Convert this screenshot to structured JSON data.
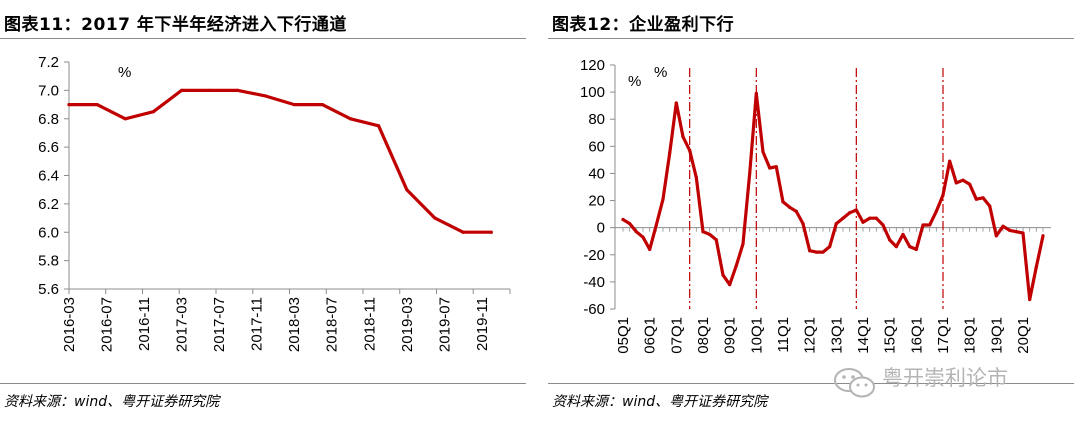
{
  "charts": {
    "left": {
      "title": "图表11：2017 年下半年经济进入下行通道",
      "source": "资料来源：wind、粤开证券研究院"
    },
    "right": {
      "title": "图表12：企业盈利下行",
      "source": "资料来源：wind、粤开证券研究院"
    }
  },
  "watermark": {
    "text": "粤开崇利论市",
    "icon": "wechat-icon"
  },
  "colors": {
    "line": "#c00000",
    "axis": "#8c8c8c",
    "marker": "#c00000"
  },
  "chart_data": [
    {
      "type": "line",
      "title": "图表11：2017 年下半年经济进入下行通道",
      "unit": "%",
      "xlabel": "",
      "ylabel": "",
      "ylim": [
        5.6,
        7.2
      ],
      "yticks": [
        "7.2",
        "7.0",
        "6.8",
        "6.6",
        "6.4",
        "6.2",
        "6.0",
        "5.8",
        "5.6"
      ],
      "ytick_values": [
        7.2,
        7.0,
        6.8,
        6.6,
        6.4,
        6.2,
        6.0,
        5.8,
        5.6
      ],
      "xtick_labels": [
        "2016-03",
        "2016-07",
        "2016-11",
        "2017-03",
        "2017-07",
        "2017-11",
        "2018-03",
        "2018-07",
        "2018-11",
        "2019-03",
        "2019-07",
        "2019-11"
      ],
      "x": [
        "2016-03",
        "2016-06",
        "2016-09",
        "2016-12",
        "2017-03",
        "2017-06",
        "2017-09",
        "2017-12",
        "2018-03",
        "2018-06",
        "2018-09",
        "2018-12",
        "2019-03",
        "2019-06",
        "2019-09",
        "2019-12"
      ],
      "values": [
        6.9,
        6.9,
        6.8,
        6.85,
        7.0,
        7.0,
        7.0,
        6.96,
        6.9,
        6.9,
        6.8,
        6.75,
        6.3,
        6.1,
        6.0,
        6.0
      ],
      "grid": false,
      "legend": "none"
    },
    {
      "type": "line",
      "title": "图表12：企业盈利下行",
      "unit": "%",
      "xlabel": "",
      "ylabel": "",
      "ylim": [
        -60,
        120
      ],
      "yticks": [
        "120",
        "100",
        "80",
        "60",
        "40",
        "20",
        "0",
        "-20",
        "-40",
        "-60"
      ],
      "ytick_values": [
        120,
        100,
        80,
        60,
        40,
        20,
        0,
        -20,
        -40,
        -60
      ],
      "xtick_labels": [
        "05Q1",
        "06Q1",
        "07Q1",
        "08Q1",
        "09Q1",
        "10Q1",
        "11Q1",
        "12Q1",
        "13Q1",
        "14Q1",
        "15Q1",
        "16Q1",
        "17Q1",
        "18Q1",
        "19Q1",
        "20Q1"
      ],
      "vlines": [
        "07Q3",
        "10Q1",
        "13Q4",
        "17Q1"
      ],
      "x": [
        "05Q1",
        "05Q2",
        "05Q3",
        "05Q4",
        "06Q1",
        "06Q2",
        "06Q3",
        "06Q4",
        "07Q1",
        "07Q2",
        "07Q3",
        "07Q4",
        "08Q1",
        "08Q2",
        "08Q3",
        "08Q4",
        "09Q1",
        "09Q2",
        "09Q3",
        "09Q4",
        "10Q1",
        "10Q2",
        "10Q3",
        "10Q4",
        "11Q1",
        "11Q2",
        "11Q3",
        "11Q4",
        "12Q1",
        "12Q2",
        "12Q3",
        "12Q4",
        "13Q1",
        "13Q2",
        "13Q3",
        "13Q4",
        "14Q1",
        "14Q2",
        "14Q3",
        "14Q4",
        "15Q1",
        "15Q2",
        "15Q3",
        "15Q4",
        "16Q1",
        "16Q2",
        "16Q3",
        "16Q4",
        "17Q1",
        "17Q2",
        "17Q3",
        "17Q4",
        "18Q1",
        "18Q2",
        "18Q3",
        "18Q4",
        "19Q1",
        "19Q2",
        "19Q3",
        "19Q4",
        "20Q1",
        "20Q2",
        "20Q3",
        "20Q4"
      ],
      "values": [
        6,
        3,
        -3,
        -7,
        -16,
        2,
        21,
        55,
        92,
        67,
        57,
        37,
        -3,
        -5,
        -9,
        -35,
        -42,
        -28,
        -12,
        40,
        99,
        56,
        44,
        45,
        19,
        15,
        12,
        3,
        -17,
        -18,
        -18,
        -14,
        3,
        7,
        11,
        13,
        4,
        7,
        7,
        2,
        -9,
        -14,
        -5,
        -14,
        -16,
        2,
        2,
        12,
        24,
        49,
        33,
        35,
        32,
        21,
        22,
        16,
        -6,
        1,
        -2,
        -3,
        -4,
        -53,
        -29,
        -6
      ],
      "grid": false,
      "legend": "none"
    }
  ]
}
